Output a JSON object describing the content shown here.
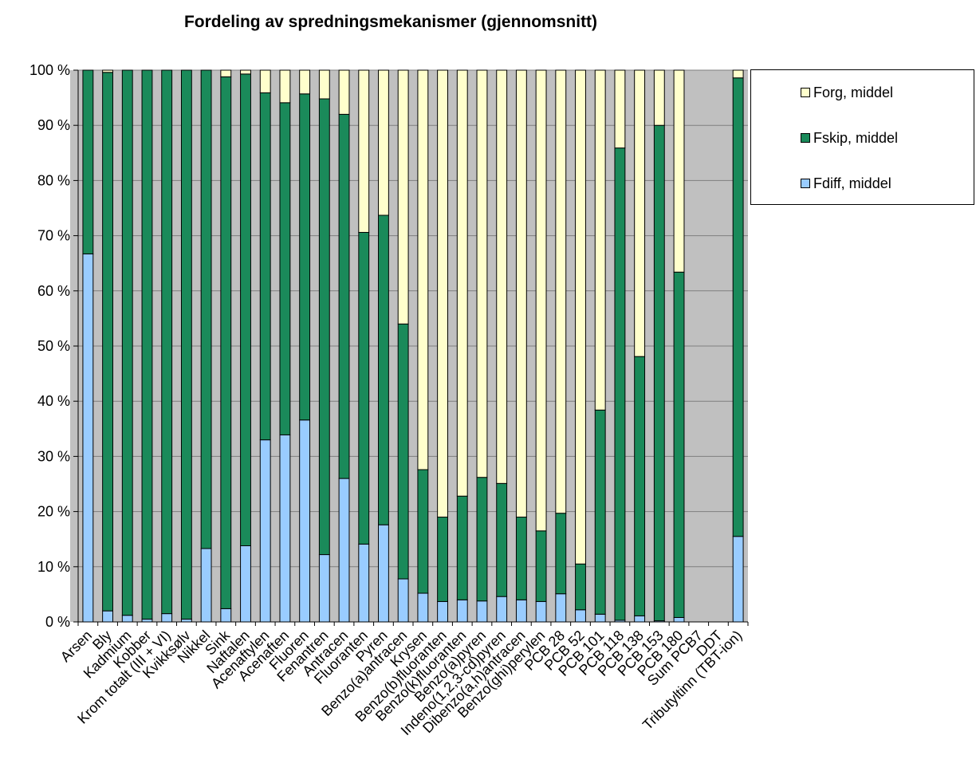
{
  "chart_data": {
    "type": "bar",
    "stacked": true,
    "title": "Fordeling av spredningsmekanismer (gjennomsnitt)",
    "xlabel": "",
    "ylabel": "",
    "ylim": [
      0,
      100
    ],
    "yticks": [
      "0 %",
      "10 %",
      "20 %",
      "30 %",
      "40 %",
      "50 %",
      "60 %",
      "70 %",
      "80 %",
      "90 %",
      "100 %"
    ],
    "grid": true,
    "legend_position": "right-top",
    "categories": [
      "Arsen",
      "Bly",
      "Kadmium",
      "Kobber",
      "Krom totalt (III + VI)",
      "Kvikksølv",
      "Nikkel",
      "Sink",
      "Naftalen",
      "Acenaftylen",
      "Acenaften",
      "Fluoren",
      "Fenantren",
      "Antracen",
      "Fluoranten",
      "Pyren",
      "Benzo(a)antracen",
      "Krysen",
      "Benzo(b)fluoranten",
      "Benzo(k)fluoranten",
      "Benzo(a)pyren",
      "Indeno(1,2,3-cd)pyren",
      "Dibenzo(a,h)antracen",
      "Benzo(ghi)perylen",
      "PCB 28",
      "PCB 52",
      "PCB 101",
      "PCB 118",
      "PCB 138",
      "PCB 153",
      "PCB 180",
      "Sum PCB7",
      "DDT",
      "Tributyltinn (TBT-ion)"
    ],
    "series": [
      {
        "name": "Fdiff, middel",
        "color": "#99ccff",
        "values": [
          66.7,
          2.0,
          1.2,
          0.5,
          1.5,
          0.5,
          13.3,
          2.4,
          13.8,
          33.0,
          33.9,
          36.6,
          12.2,
          26.0,
          14.1,
          17.6,
          7.8,
          5.2,
          3.7,
          4.0,
          3.8,
          4.6,
          4.0,
          3.7,
          5.1,
          2.2,
          1.4,
          0.3,
          1.1,
          0.2,
          0.8,
          0,
          0,
          15.5
        ]
      },
      {
        "name": "Fskip, middel",
        "color": "#1a8a5a",
        "values": [
          33.3,
          97.6,
          98.8,
          99.5,
          98.5,
          99.5,
          86.7,
          96.4,
          85.5,
          62.9,
          60.2,
          59.1,
          82.6,
          66.0,
          56.5,
          56.1,
          46.2,
          22.4,
          15.3,
          18.8,
          22.4,
          20.5,
          15.0,
          12.8,
          14.6,
          8.3,
          37.0,
          85.6,
          47.0,
          89.8,
          62.6,
          0,
          0,
          83.1
        ]
      },
      {
        "name": "Forg, middel",
        "color": "#ffffcc",
        "values": [
          0,
          0.4,
          0,
          0,
          0,
          0,
          0,
          1.2,
          0.7,
          4.1,
          5.9,
          4.3,
          5.2,
          8.0,
          29.4,
          26.3,
          46.0,
          72.4,
          81.0,
          77.2,
          73.8,
          74.9,
          81.0,
          83.5,
          80.3,
          89.5,
          61.6,
          14.1,
          51.9,
          10.0,
          36.6,
          0,
          0,
          1.4
        ]
      }
    ],
    "legend_order": [
      "Forg, middel",
      "Fskip, middel",
      "Fdiff, middel"
    ]
  }
}
